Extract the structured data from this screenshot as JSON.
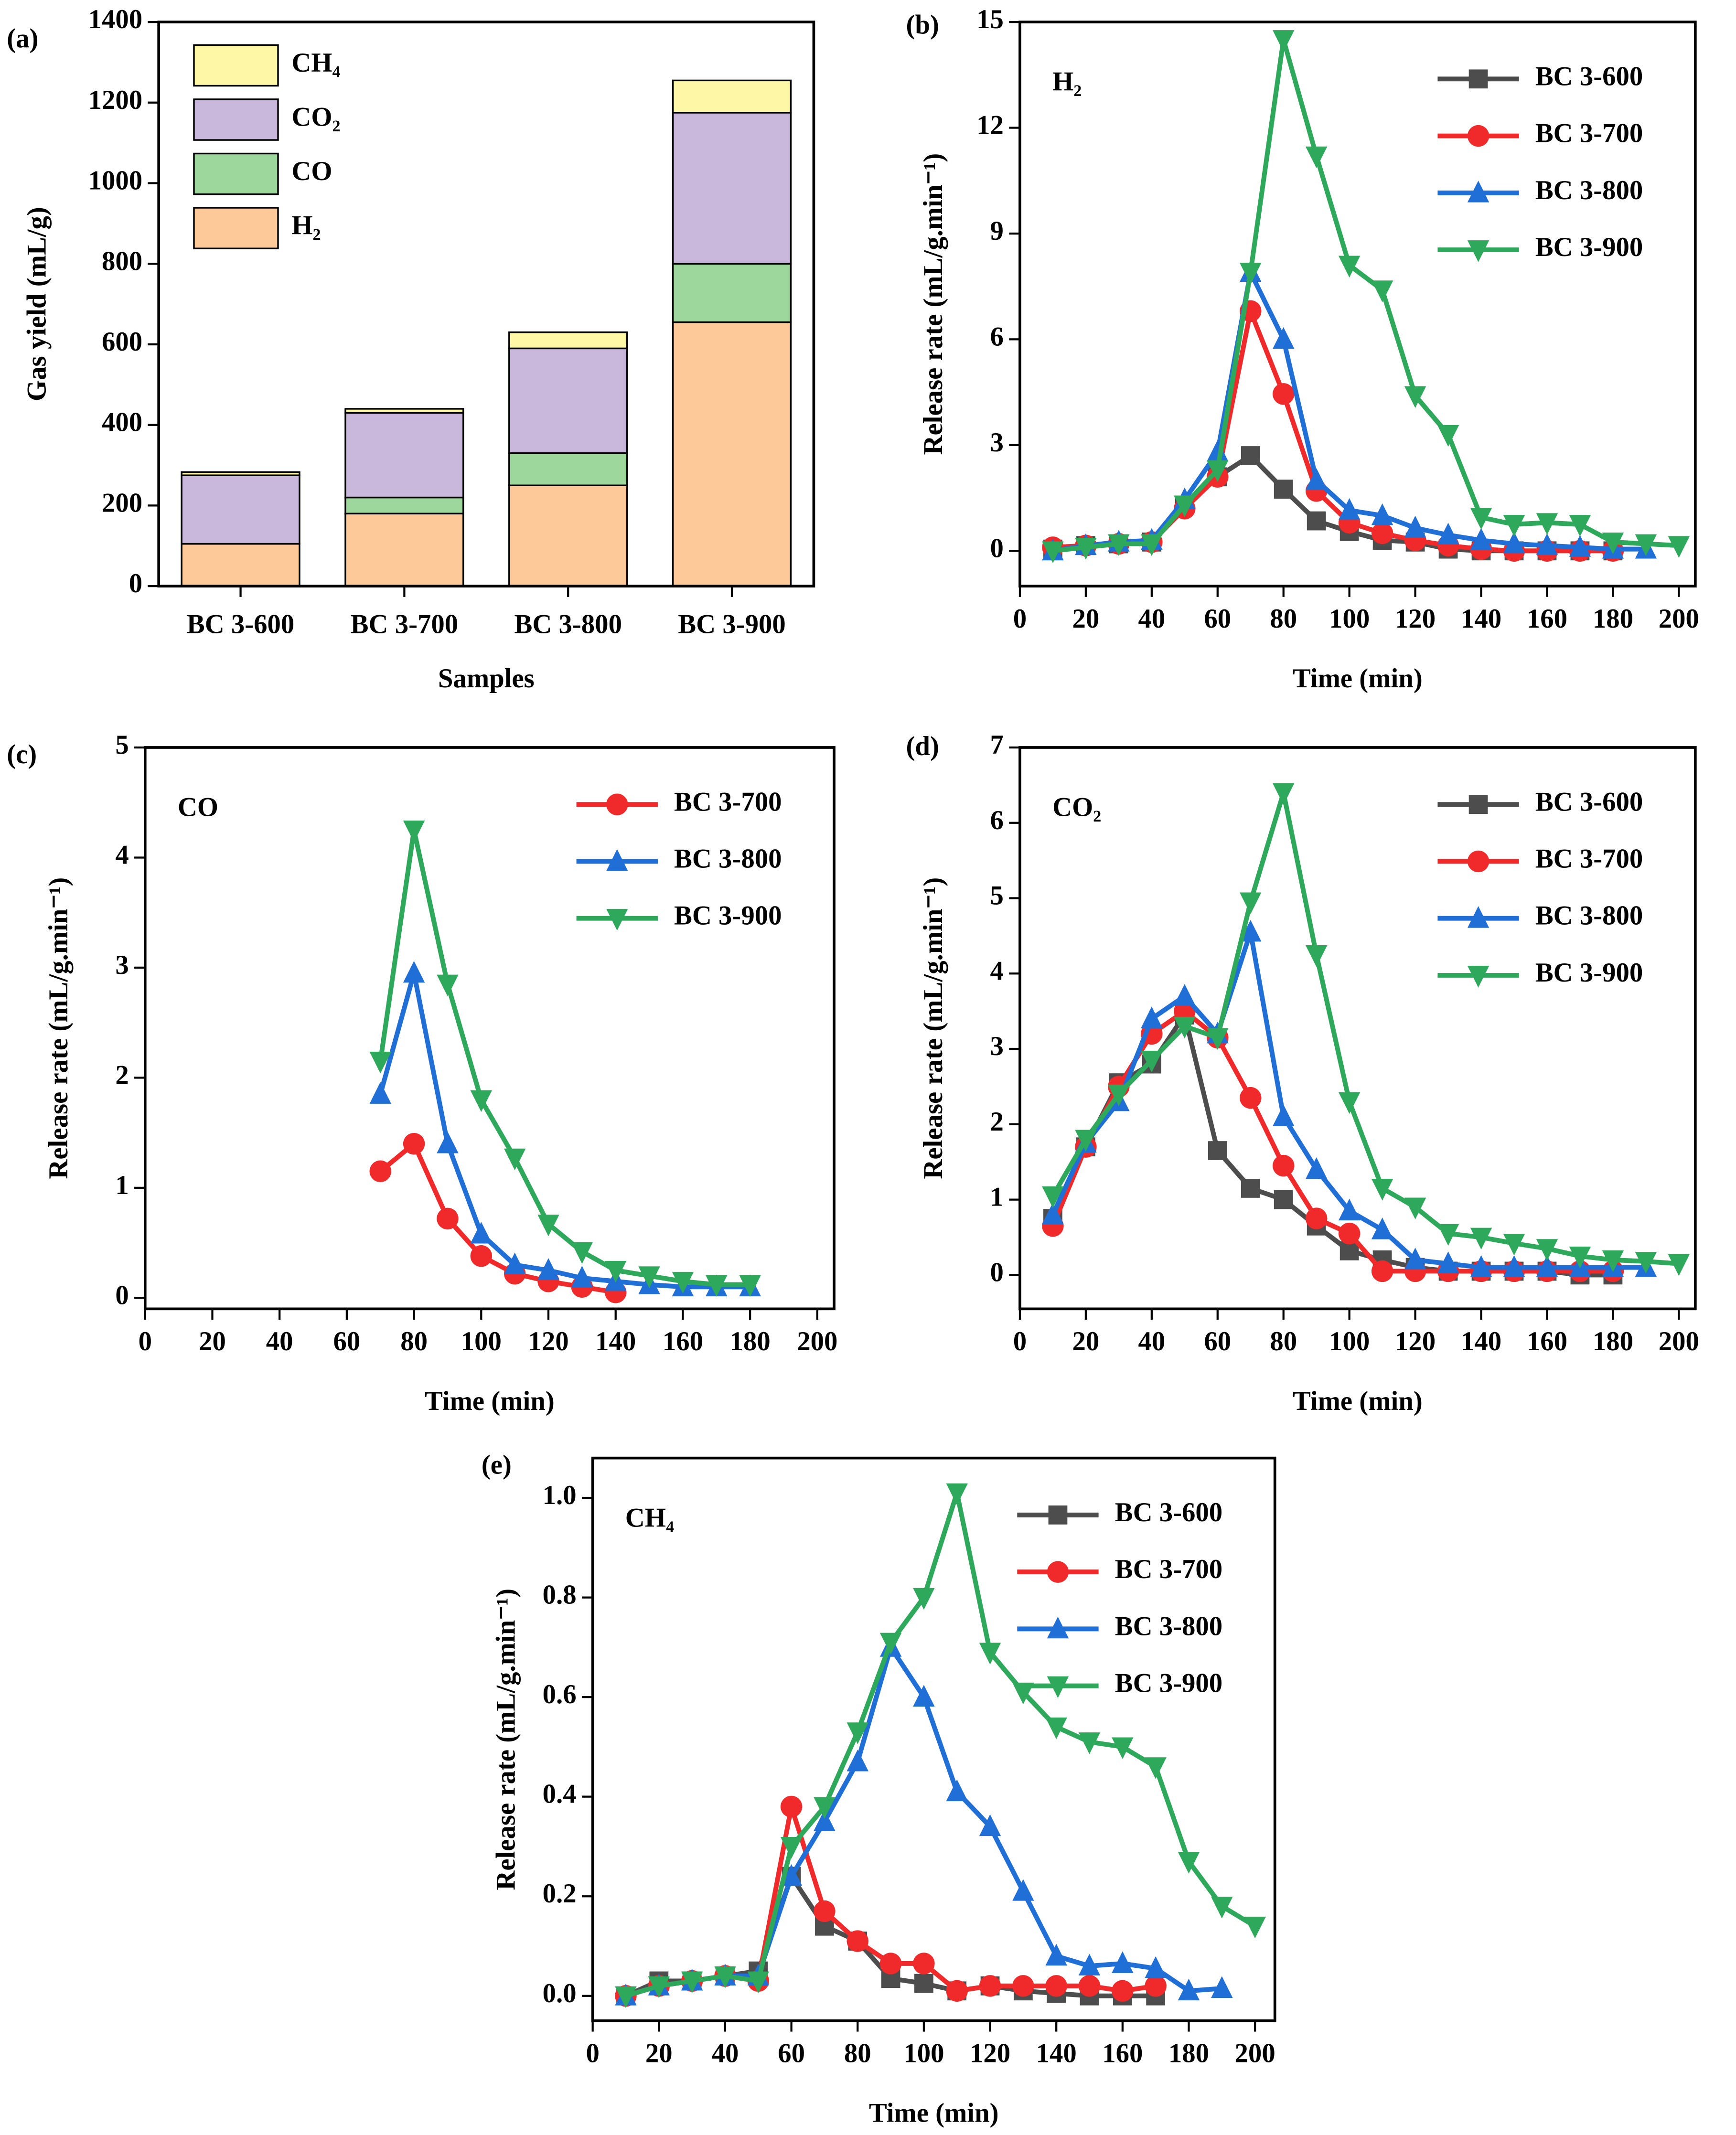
{
  "chart_data": [
    {
      "type": "bar",
      "stacked": true,
      "panel_label": "(a)",
      "xlabel": "Samples",
      "ylabel": "Gas yield (mL/g)",
      "categories": [
        "BC 3-600",
        "BC 3-700",
        "BC 3-800",
        "BC 3-900"
      ],
      "series": [
        {
          "name": "H₂",
          "color": "#fdc998",
          "values": [
            105,
            180,
            250,
            655
          ]
        },
        {
          "name": "CO",
          "color": "#9ed79b",
          "values": [
            0,
            40,
            80,
            145
          ]
        },
        {
          "name": "CO₂",
          "color": "#c9b8dc",
          "values": [
            170,
            210,
            260,
            375
          ]
        },
        {
          "name": "CH₄",
          "color": "#fdf7a6",
          "values": [
            8,
            10,
            40,
            80
          ]
        }
      ],
      "ylim": [
        0,
        1400
      ],
      "yticks": [
        0,
        200,
        400,
        600,
        800,
        1000,
        1200,
        1400
      ],
      "legend": "upper left"
    },
    {
      "type": "line",
      "panel_label": "(b)",
      "annotation": "H₂",
      "xlabel": "Time (min)",
      "ylabel": "Release rate (mL/g.min⁻¹)",
      "series": [
        {
          "name": "BC 3-600",
          "color": "#4d4d4d",
          "marker": "square",
          "x": [
            10,
            20,
            30,
            40,
            50,
            60,
            70,
            80,
            90,
            100,
            110,
            120,
            130,
            140,
            150,
            160,
            170,
            180
          ],
          "values": [
            0.05,
            0.15,
            0.2,
            0.25,
            1.3,
            2.1,
            2.7,
            1.75,
            0.85,
            0.55,
            0.3,
            0.25,
            0.05,
            0,
            0,
            0,
            0,
            0
          ]
        },
        {
          "name": "BC 3-700",
          "color": "#f02a2a",
          "marker": "circle",
          "x": [
            10,
            20,
            30,
            40,
            50,
            60,
            70,
            80,
            90,
            100,
            110,
            120,
            130,
            140,
            150,
            160,
            170,
            180
          ],
          "values": [
            0.1,
            0.15,
            0.2,
            0.25,
            1.2,
            2.1,
            6.8,
            4.45,
            1.7,
            0.8,
            0.5,
            0.3,
            0.15,
            0.05,
            0,
            0,
            0,
            0
          ]
        },
        {
          "name": "BC 3-800",
          "color": "#1f6fd6",
          "marker": "triangle-up",
          "x": [
            10,
            20,
            30,
            40,
            50,
            60,
            70,
            80,
            90,
            100,
            110,
            120,
            130,
            140,
            150,
            160,
            170,
            180,
            190
          ],
          "values": [
            0,
            0.15,
            0.25,
            0.3,
            1.45,
            2.8,
            7.9,
            6.0,
            2.0,
            1.15,
            1.0,
            0.65,
            0.45,
            0.3,
            0.2,
            0.15,
            0.1,
            0.05,
            0.05
          ]
        },
        {
          "name": "BC 3-900",
          "color": "#2ea85a",
          "marker": "triangle-down",
          "x": [
            10,
            20,
            30,
            40,
            50,
            60,
            70,
            80,
            90,
            100,
            110,
            120,
            130,
            140,
            150,
            160,
            170,
            180,
            190,
            200
          ],
          "values": [
            0,
            0.1,
            0.2,
            0.2,
            1.3,
            2.3,
            7.9,
            14.5,
            11.2,
            8.1,
            7.4,
            4.4,
            3.3,
            0.95,
            0.75,
            0.8,
            0.75,
            0.25,
            0.2,
            0.15
          ]
        }
      ],
      "xlim": [
        0,
        205
      ],
      "xticks": [
        0,
        20,
        40,
        60,
        80,
        100,
        120,
        140,
        160,
        180,
        200
      ],
      "ylim": [
        -1,
        15
      ],
      "yticks": [
        0,
        3,
        6,
        9,
        12,
        15
      ],
      "legend": "upper right"
    },
    {
      "type": "line",
      "panel_label": "(c)",
      "annotation": "CO",
      "xlabel": "Time (min)",
      "ylabel": "Release rate (mL/g.min⁻¹)",
      "series": [
        {
          "name": "BC 3-700",
          "color": "#f02a2a",
          "marker": "circle",
          "x": [
            70,
            80,
            90,
            100,
            110,
            120,
            130,
            140
          ],
          "values": [
            1.15,
            1.4,
            0.72,
            0.38,
            0.22,
            0.15,
            0.1,
            0.05
          ]
        },
        {
          "name": "BC 3-800",
          "color": "#1f6fd6",
          "marker": "triangle-up",
          "x": [
            70,
            80,
            90,
            100,
            110,
            120,
            130,
            140,
            150,
            160,
            170,
            180
          ],
          "values": [
            1.85,
            2.95,
            1.4,
            0.58,
            0.3,
            0.25,
            0.18,
            0.15,
            0.12,
            0.1,
            0.1,
            0.1
          ]
        },
        {
          "name": "BC 3-900",
          "color": "#2ea85a",
          "marker": "triangle-down",
          "x": [
            70,
            80,
            90,
            100,
            110,
            120,
            130,
            140,
            150,
            160,
            170,
            180
          ],
          "values": [
            2.15,
            4.25,
            2.85,
            1.8,
            1.27,
            0.67,
            0.42,
            0.25,
            0.2,
            0.15,
            0.12,
            0.12
          ]
        }
      ],
      "xlim": [
        0,
        205
      ],
      "xticks": [
        0,
        20,
        40,
        60,
        80,
        100,
        120,
        140,
        160,
        180,
        200
      ],
      "ylim": [
        -0.1,
        5
      ],
      "yticks": [
        0,
        1,
        2,
        3,
        4,
        5
      ],
      "legend": "upper right"
    },
    {
      "type": "line",
      "panel_label": "(d)",
      "annotation": "CO₂",
      "xlabel": "Time (min)",
      "ylabel": "Release rate (mL/g.min⁻¹)",
      "series": [
        {
          "name": "BC 3-600",
          "color": "#4d4d4d",
          "marker": "square",
          "x": [
            10,
            20,
            30,
            40,
            50,
            60,
            70,
            80,
            90,
            100,
            110,
            120,
            130,
            140,
            150,
            160,
            170,
            180
          ],
          "values": [
            0.75,
            1.7,
            2.55,
            2.8,
            3.45,
            1.65,
            1.15,
            1.0,
            0.65,
            0.32,
            0.2,
            0.1,
            0.05,
            0.05,
            0.05,
            0.05,
            0,
            0
          ]
        },
        {
          "name": "BC 3-700",
          "color": "#f02a2a",
          "marker": "circle",
          "x": [
            10,
            20,
            30,
            40,
            50,
            60,
            70,
            80,
            90,
            100,
            110,
            120,
            130,
            140,
            150,
            160,
            170,
            180
          ],
          "values": [
            0.65,
            1.7,
            2.5,
            3.2,
            3.5,
            3.15,
            2.35,
            1.45,
            0.75,
            0.55,
            0.05,
            0.05,
            0.05,
            0.05,
            0.05,
            0.05,
            0.05,
            0.05
          ]
        },
        {
          "name": "BC 3-800",
          "color": "#1f6fd6",
          "marker": "triangle-up",
          "x": [
            10,
            20,
            30,
            40,
            50,
            60,
            70,
            80,
            90,
            100,
            110,
            120,
            130,
            140,
            150,
            160,
            170,
            180,
            190
          ],
          "values": [
            0.8,
            1.75,
            2.3,
            3.4,
            3.7,
            3.2,
            4.55,
            2.1,
            1.4,
            0.85,
            0.6,
            0.2,
            0.15,
            0.1,
            0.1,
            0.1,
            0.1,
            0.1,
            0.1
          ]
        },
        {
          "name": "BC 3-900",
          "color": "#2ea85a",
          "marker": "triangle-down",
          "x": [
            10,
            20,
            30,
            40,
            50,
            60,
            70,
            80,
            90,
            100,
            110,
            120,
            130,
            140,
            150,
            160,
            170,
            180,
            190,
            200
          ],
          "values": [
            1.05,
            1.8,
            2.4,
            2.85,
            3.3,
            3.15,
            4.95,
            6.4,
            4.25,
            2.3,
            1.15,
            0.9,
            0.55,
            0.5,
            0.42,
            0.35,
            0.25,
            0.2,
            0.18,
            0.15
          ]
        }
      ],
      "xlim": [
        0,
        205
      ],
      "xticks": [
        0,
        20,
        40,
        60,
        80,
        100,
        120,
        140,
        160,
        180,
        200
      ],
      "ylim": [
        -0.45,
        7
      ],
      "yticks": [
        0,
        1,
        2,
        3,
        4,
        5,
        6,
        7
      ],
      "legend": "upper right"
    },
    {
      "type": "line",
      "panel_label": "(e)",
      "annotation": "CH₄",
      "xlabel": "Time (min)",
      "ylabel": "Release rate (mL/g.min⁻¹)",
      "series": [
        {
          "name": "BC 3-600",
          "color": "#4d4d4d",
          "marker": "square",
          "x": [
            10,
            20,
            30,
            40,
            50,
            60,
            70,
            80,
            90,
            100,
            110,
            120,
            130,
            140,
            150,
            160,
            170
          ],
          "values": [
            0,
            0.03,
            0.03,
            0.04,
            0.05,
            0.24,
            0.14,
            0.11,
            0.035,
            0.025,
            0.01,
            0.02,
            0.01,
            0.005,
            0,
            0,
            0
          ]
        },
        {
          "name": "BC 3-700",
          "color": "#f02a2a",
          "marker": "circle",
          "x": [
            10,
            20,
            30,
            40,
            50,
            60,
            70,
            80,
            90,
            100,
            110,
            120,
            130,
            140,
            150,
            160,
            170
          ],
          "values": [
            0,
            0.02,
            0.03,
            0.04,
            0.03,
            0.38,
            0.17,
            0.11,
            0.065,
            0.065,
            0.01,
            0.02,
            0.02,
            0.02,
            0.02,
            0.01,
            0.02
          ]
        },
        {
          "name": "BC 3-800",
          "color": "#1f6fd6",
          "marker": "triangle-up",
          "x": [
            10,
            20,
            30,
            40,
            50,
            60,
            70,
            80,
            90,
            100,
            110,
            120,
            130,
            140,
            150,
            160,
            170,
            180,
            190
          ],
          "values": [
            0,
            0.02,
            0.03,
            0.04,
            0.04,
            0.24,
            0.35,
            0.47,
            0.7,
            0.6,
            0.41,
            0.34,
            0.21,
            0.08,
            0.06,
            0.065,
            0.055,
            0.01,
            0.015
          ]
        },
        {
          "name": "BC 3-900",
          "color": "#2ea85a",
          "marker": "triangle-down",
          "x": [
            10,
            20,
            30,
            40,
            50,
            60,
            70,
            80,
            90,
            100,
            110,
            120,
            130,
            140,
            150,
            160,
            170,
            180,
            190,
            200
          ],
          "values": [
            0,
            0.02,
            0.03,
            0.04,
            0.03,
            0.3,
            0.38,
            0.53,
            0.71,
            0.8,
            1.01,
            0.69,
            0.61,
            0.54,
            0.51,
            0.5,
            0.46,
            0.27,
            0.18,
            0.14
          ]
        }
      ],
      "xlim": [
        0,
        206
      ],
      "xticks": [
        0,
        20,
        40,
        60,
        80,
        100,
        120,
        140,
        160,
        180,
        200
      ],
      "ylim": [
        -0.05,
        1.08
      ],
      "yticks": [
        {
          "value": 0,
          "label": "0.0"
        },
        0.2,
        0.4,
        0.6,
        0.8,
        {
          "value": 1,
          "label": "1.0"
        }
      ],
      "legend": "upper right"
    }
  ]
}
